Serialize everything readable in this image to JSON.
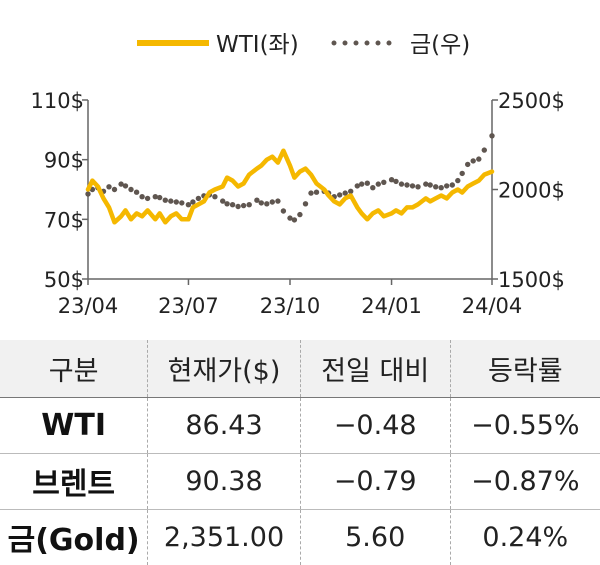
{
  "chart_data": {
    "type": "line",
    "legend": {
      "placement": "top-center"
    },
    "x_ticks": [
      "23/04",
      "23/07",
      "23/10",
      "24/01",
      "24/04"
    ],
    "y_left": {
      "ylim": [
        50,
        110
      ],
      "ticks": [
        "110$",
        "90$",
        "70$",
        "50$"
      ],
      "tick_values": [
        110,
        90,
        70,
        50
      ]
    },
    "y_right": {
      "ylim": [
        1500,
        2500
      ],
      "ticks": [
        "2500$",
        "2000$",
        "1500$"
      ],
      "tick_values": [
        2500,
        2000,
        1500
      ]
    },
    "grid": false,
    "series": [
      {
        "name": "WTI(좌)",
        "axis": "left",
        "color": "#F5B800",
        "style": "solid",
        "x": [
          "2023-04-01",
          "2023-04-05",
          "2023-04-10",
          "2023-04-15",
          "2023-04-20",
          "2023-04-25",
          "2023-05-01",
          "2023-05-05",
          "2023-05-10",
          "2023-05-15",
          "2023-05-20",
          "2023-05-25",
          "2023-06-01",
          "2023-06-05",
          "2023-06-10",
          "2023-06-15",
          "2023-06-20",
          "2023-06-25",
          "2023-07-01",
          "2023-07-05",
          "2023-07-10",
          "2023-07-15",
          "2023-07-20",
          "2023-07-25",
          "2023-08-01",
          "2023-08-05",
          "2023-08-10",
          "2023-08-15",
          "2023-08-20",
          "2023-08-25",
          "2023-09-01",
          "2023-09-05",
          "2023-09-10",
          "2023-09-15",
          "2023-09-20",
          "2023-09-25",
          "2023-10-01",
          "2023-10-05",
          "2023-10-10",
          "2023-10-15",
          "2023-10-20",
          "2023-10-25",
          "2023-11-01",
          "2023-11-05",
          "2023-11-10",
          "2023-11-15",
          "2023-11-20",
          "2023-11-25",
          "2023-12-01",
          "2023-12-05",
          "2023-12-10",
          "2023-12-15",
          "2023-12-20",
          "2023-12-25",
          "2024-01-01",
          "2024-01-05",
          "2024-01-10",
          "2024-01-15",
          "2024-01-20",
          "2024-01-25",
          "2024-02-01",
          "2024-02-05",
          "2024-02-10",
          "2024-02-15",
          "2024-02-20",
          "2024-02-25",
          "2024-03-01",
          "2024-03-05",
          "2024-03-10",
          "2024-03-15",
          "2024-03-20",
          "2024-03-25",
          "2024-04-01"
        ],
        "values": [
          80,
          83,
          81,
          77,
          74,
          69,
          71,
          73,
          70,
          72,
          71,
          73,
          70,
          72,
          69,
          71,
          72,
          70,
          70,
          74,
          75,
          76,
          79,
          80,
          81,
          84,
          83,
          81,
          82,
          85,
          87,
          88,
          90,
          91,
          89,
          93,
          88,
          84,
          86,
          87,
          85,
          82,
          80,
          78,
          76,
          75,
          77,
          78,
          74,
          72,
          70,
          72,
          73,
          71,
          72,
          73,
          72,
          74,
          74,
          75,
          77,
          76,
          77,
          78,
          77,
          79,
          80,
          79,
          81,
          82,
          83,
          85,
          86
        ]
      },
      {
        "name": "금(우)",
        "axis": "right",
        "color": "#5F5650",
        "style": "dotted",
        "x": [
          "2023-04-01",
          "2023-04-05",
          "2023-04-10",
          "2023-04-15",
          "2023-04-20",
          "2023-04-25",
          "2023-05-01",
          "2023-05-05",
          "2023-05-10",
          "2023-05-15",
          "2023-05-20",
          "2023-05-25",
          "2023-06-01",
          "2023-06-05",
          "2023-06-10",
          "2023-06-15",
          "2023-06-20",
          "2023-06-25",
          "2023-07-01",
          "2023-07-05",
          "2023-07-10",
          "2023-07-15",
          "2023-07-20",
          "2023-07-25",
          "2023-08-01",
          "2023-08-05",
          "2023-08-10",
          "2023-08-15",
          "2023-08-20",
          "2023-08-25",
          "2023-09-01",
          "2023-09-05",
          "2023-09-10",
          "2023-09-15",
          "2023-09-20",
          "2023-09-25",
          "2023-10-01",
          "2023-10-05",
          "2023-10-10",
          "2023-10-15",
          "2023-10-20",
          "2023-10-25",
          "2023-11-01",
          "2023-11-05",
          "2023-11-10",
          "2023-11-15",
          "2023-11-20",
          "2023-11-25",
          "2023-12-01",
          "2023-12-05",
          "2023-12-10",
          "2023-12-15",
          "2023-12-20",
          "2023-12-25",
          "2024-01-01",
          "2024-01-05",
          "2024-01-10",
          "2024-01-15",
          "2024-01-20",
          "2024-01-25",
          "2024-02-01",
          "2024-02-05",
          "2024-02-10",
          "2024-02-15",
          "2024-02-20",
          "2024-02-25",
          "2024-03-01",
          "2024-03-05",
          "2024-03-10",
          "2024-03-15",
          "2024-03-20",
          "2024-03-25",
          "2024-04-01"
        ],
        "values": [
          1975,
          2000,
          2010,
          1990,
          2015,
          2000,
          2030,
          2020,
          2000,
          1985,
          1960,
          1950,
          1960,
          1955,
          1940,
          1935,
          1930,
          1925,
          1915,
          1930,
          1950,
          1965,
          1970,
          1960,
          1935,
          1920,
          1915,
          1905,
          1910,
          1915,
          1940,
          1925,
          1920,
          1930,
          1935,
          1880,
          1840,
          1830,
          1860,
          1920,
          1980,
          1985,
          1990,
          1980,
          1960,
          1970,
          1980,
          1990,
          2020,
          2030,
          2035,
          2010,
          2030,
          2040,
          2055,
          2045,
          2030,
          2025,
          2020,
          2015,
          2030,
          2025,
          2015,
          2010,
          2020,
          2025,
          2050,
          2090,
          2140,
          2160,
          2170,
          2220,
          2300
        ]
      }
    ]
  },
  "table": {
    "headers": [
      "구분",
      "현재가($)",
      "전일 대비",
      "등락률"
    ],
    "rows": [
      {
        "name": "WTI",
        "price": "86.43",
        "change": "−0.48",
        "rate": "−0.55%"
      },
      {
        "name": "브렌트",
        "price": "90.38",
        "change": "−0.79",
        "rate": "−0.87%"
      },
      {
        "name": "금(Gold)",
        "price": "2,351.00",
        "change": "5.60",
        "rate": "0.24%"
      }
    ]
  }
}
